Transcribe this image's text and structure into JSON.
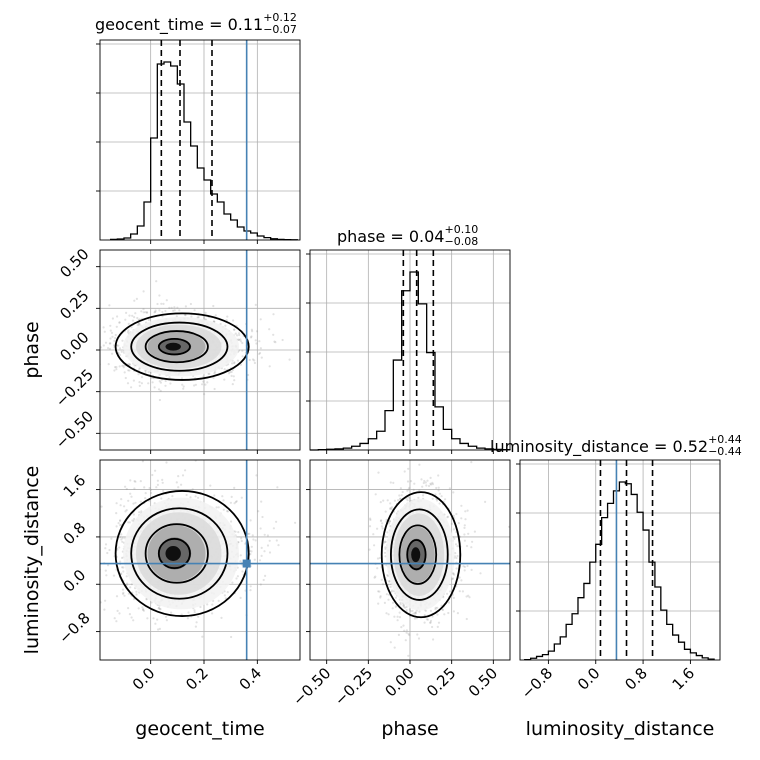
{
  "figure": {
    "titles": {
      "geocent_time": {
        "prefix": "geocent_time = 0.11",
        "sup": "+0.12",
        "sub": "−0.07"
      },
      "phase": {
        "prefix": "phase = 0.04",
        "sup": "+0.10",
        "sub": "−0.08"
      },
      "luminosity_distance": {
        "prefix": "luminosity_distance = 0.52",
        "sup": "+0.44",
        "sub": "−0.44"
      }
    },
    "axis_labels": {
      "geocent_time": "geocent_time",
      "phase": "phase",
      "luminosity_distance": "luminosity_distance"
    },
    "colors": {
      "truth": "#4682b4",
      "contour": "#000000",
      "hist": "#000000"
    }
  },
  "chart_data": {
    "type": "corner",
    "parameters": [
      "geocent_time",
      "phase",
      "luminosity_distance"
    ],
    "ranges": {
      "geocent_time": [
        -0.19,
        0.56
      ],
      "phase": [
        -0.6,
        0.6
      ],
      "luminosity_distance": [
        -1.28,
        2.1
      ]
    },
    "ticks": {
      "geocent_time": {
        "values": [
          0.0,
          0.2,
          0.4
        ],
        "labels": [
          "0.0",
          "0.2",
          "0.4"
        ]
      },
      "phase": {
        "values": [
          -0.5,
          -0.25,
          0.0,
          0.25,
          0.5
        ],
        "labels": [
          "−0.50",
          "−0.25",
          "0.00",
          "0.25",
          "0.50"
        ]
      },
      "luminosity_distance": {
        "values": [
          -0.8,
          0.0,
          0.8,
          1.6
        ],
        "labels": [
          "−0.8",
          "0.0",
          "0.8",
          "1.6"
        ]
      }
    },
    "truths": {
      "geocent_time": 0.36,
      "phase": null,
      "luminosity_distance": 0.35
    },
    "quantiles": {
      "geocent_time": [
        0.04,
        0.11,
        0.23
      ],
      "phase": [
        -0.04,
        0.04,
        0.14
      ],
      "luminosity_distance": [
        0.08,
        0.52,
        0.96
      ]
    },
    "histograms": {
      "geocent_time": {
        "edges": [
          -0.15,
          -0.125,
          -0.1,
          -0.075,
          -0.05,
          -0.025,
          0.0,
          0.025,
          0.05,
          0.075,
          0.1,
          0.125,
          0.15,
          0.175,
          0.2,
          0.225,
          0.25,
          0.275,
          0.3,
          0.325,
          0.35,
          0.375,
          0.4,
          0.425,
          0.45,
          0.475,
          0.5,
          0.525,
          0.55
        ],
        "counts": [
          0.003,
          0.005,
          0.01,
          0.03,
          0.07,
          0.19,
          0.51,
          0.88,
          0.89,
          0.87,
          0.78,
          0.59,
          0.47,
          0.36,
          0.3,
          0.23,
          0.19,
          0.13,
          0.1,
          0.065,
          0.045,
          0.035,
          0.02,
          0.012,
          0.006,
          0.003,
          0.002,
          0.001
        ]
      },
      "phase": {
        "edges": [
          -0.6,
          -0.55,
          -0.5,
          -0.45,
          -0.4,
          -0.35,
          -0.3,
          -0.25,
          -0.2,
          -0.15,
          -0.1,
          -0.05,
          0.0,
          0.05,
          0.1,
          0.15,
          0.2,
          0.25,
          0.3,
          0.35,
          0.4,
          0.45,
          0.5,
          0.55,
          0.6
        ],
        "counts": [
          0.0,
          0.002,
          0.004,
          0.006,
          0.01,
          0.02,
          0.035,
          0.06,
          0.1,
          0.21,
          0.48,
          0.85,
          0.95,
          0.78,
          0.52,
          0.23,
          0.11,
          0.06,
          0.035,
          0.02,
          0.01,
          0.006,
          0.003,
          0.002
        ]
      },
      "luminosity_distance": {
        "edges": [
          -1.2,
          -1.1,
          -1.0,
          -0.9,
          -0.8,
          -0.7,
          -0.6,
          -0.5,
          -0.4,
          -0.3,
          -0.2,
          -0.1,
          0.0,
          0.1,
          0.2,
          0.3,
          0.4,
          0.5,
          0.6,
          0.7,
          0.8,
          0.9,
          1.0,
          1.1,
          1.2,
          1.3,
          1.4,
          1.5,
          1.6,
          1.7,
          1.8,
          1.9,
          2.0
        ],
        "counts": [
          0.002,
          0.01,
          0.02,
          0.03,
          0.05,
          0.09,
          0.13,
          0.2,
          0.26,
          0.35,
          0.43,
          0.55,
          0.65,
          0.8,
          0.88,
          0.95,
          1.0,
          0.99,
          0.93,
          0.83,
          0.73,
          0.55,
          0.41,
          0.28,
          0.2,
          0.14,
          0.1,
          0.06,
          0.04,
          0.025,
          0.012,
          0.005
        ]
      }
    },
    "pairs": [
      {
        "x": "geocent_time",
        "y": "phase",
        "center": [
          0.08,
          0.02
        ],
        "sigma": [
          0.09,
          0.085
        ],
        "truth_lines": [
          "x"
        ]
      },
      {
        "x": "geocent_time",
        "y": "luminosity_distance",
        "center": [
          0.08,
          0.52
        ],
        "sigma": [
          0.09,
          0.45
        ],
        "truth_lines": [
          "x",
          "y"
        ]
      },
      {
        "x": "phase",
        "y": "luminosity_distance",
        "center": [
          0.03,
          0.5
        ],
        "sigma": [
          0.085,
          0.45
        ],
        "truth_lines": [
          "y"
        ]
      }
    ]
  }
}
